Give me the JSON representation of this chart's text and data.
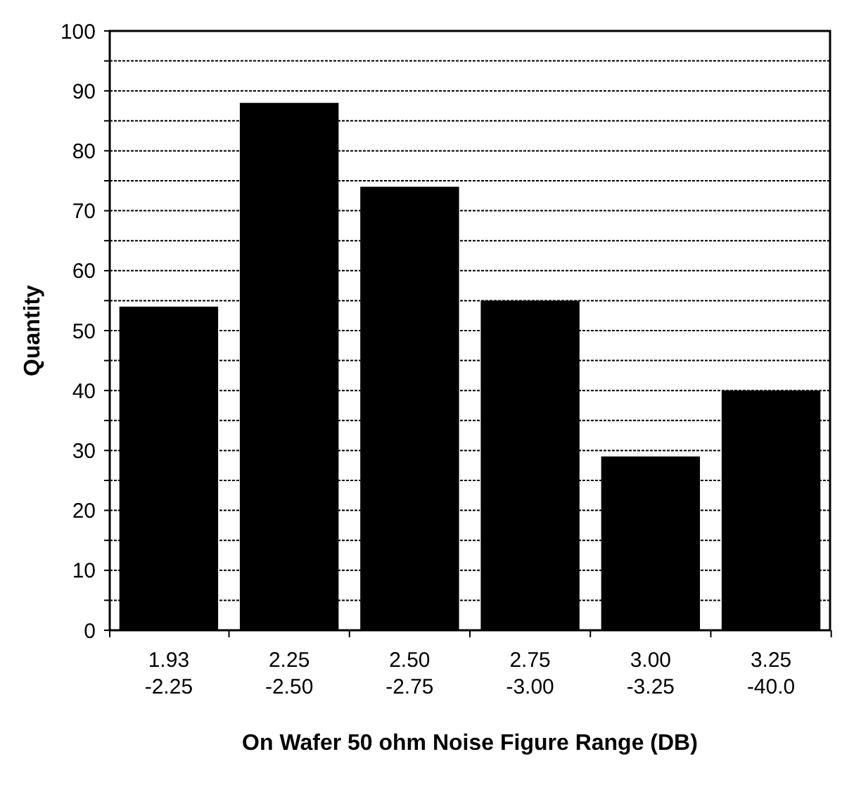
{
  "chart_data": {
    "type": "bar",
    "xlabel": "On Wafer 50 ohm Noise Figure Range (DB)",
    "ylabel": "Quantity",
    "categories": [
      "1.93\n-2.25",
      "2.25\n-2.50",
      "2.50\n-2.75",
      "2.75\n-3.00",
      "3.00\n-3.25",
      "3.25\n-40.0"
    ],
    "values": [
      54,
      88,
      74,
      55,
      29,
      40
    ],
    "color": "#000000",
    "ylim": [
      0,
      100
    ],
    "yticks": [
      0,
      {
        "value": 5,
        "label": null
      },
      10,
      {
        "value": 15,
        "label": null
      },
      20,
      {
        "value": 25,
        "label": null
      },
      30,
      {
        "value": 35,
        "label": null
      },
      40,
      {
        "value": 45,
        "label": null
      },
      50,
      {
        "value": 55,
        "label": null
      },
      60,
      {
        "value": 65,
        "label": null
      },
      70,
      {
        "value": 75,
        "label": null
      },
      80,
      {
        "value": 85,
        "label": null
      },
      90,
      {
        "value": 95,
        "label": null
      },
      100
    ],
    "grid": "y"
  }
}
